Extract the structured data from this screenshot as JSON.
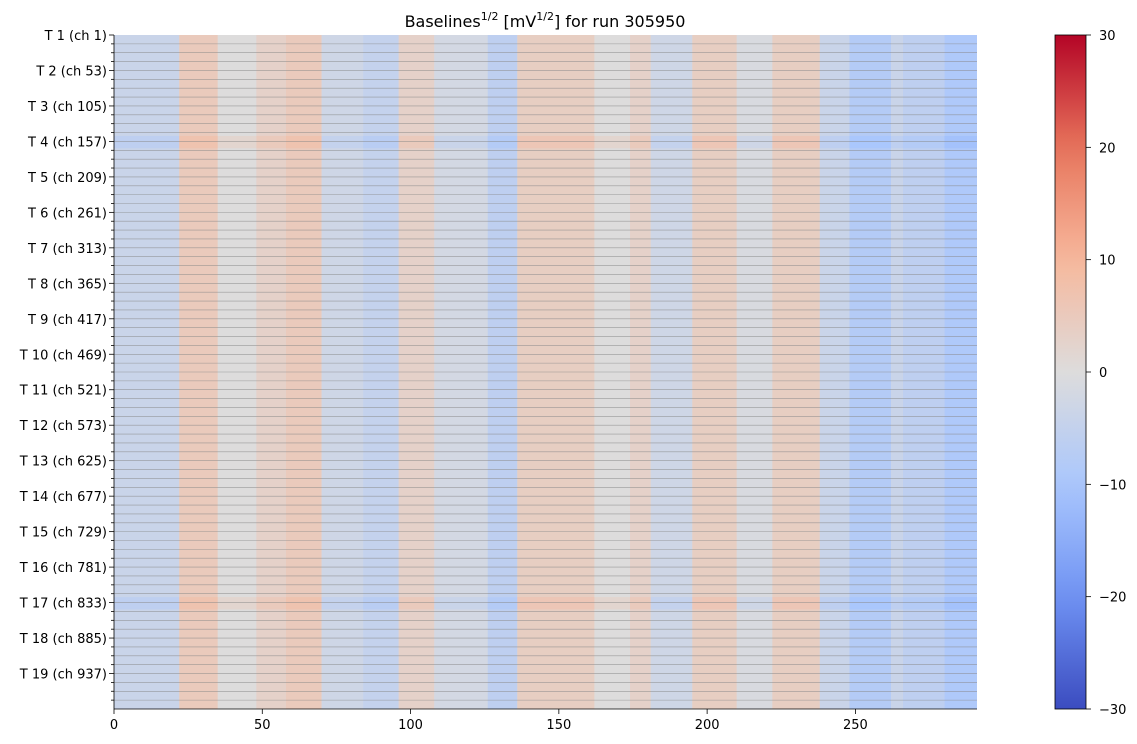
{
  "chart_data": {
    "type": "heatmap",
    "title": {
      "prefix": "Baselines",
      "prefix_sup": "1/2",
      "middle": " [mV",
      "middle_sup": "1/2",
      "suffix": "] for run 305950"
    },
    "xlabel": "",
    "ylabel": "",
    "xlim": [
      0,
      291
    ],
    "x_ticks": [
      0,
      50,
      100,
      150,
      200,
      250
    ],
    "n_rows": 988,
    "row_labels": [
      "T 1 (ch 1)",
      "T 2 (ch 53)",
      "T 3 (ch 105)",
      "T 4 (ch 157)",
      "T 5 (ch 209)",
      "T 6 (ch 261)",
      "T 7 (ch 313)",
      "T 8 (ch 365)",
      "T 9 (ch 417)",
      "T 10 (ch 469)",
      "T 11 (ch 521)",
      "T 12 (ch 573)",
      "T 13 (ch 625)",
      "T 14 (ch 677)",
      "T 15 (ch 729)",
      "T 16 (ch 781)",
      "T 17 (ch 833)",
      "T 18 (ch 885)",
      "T 19 (ch 937)"
    ],
    "channels_per_label": 52,
    "colorbar": {
      "colormap": "coolwarm",
      "vmin": -30,
      "vmax": 30,
      "ticks": [
        -30,
        -20,
        -10,
        0,
        10,
        20,
        30
      ],
      "colors": [
        "#3b4cc0",
        "#6f92f3",
        "#aac7fd",
        "#dddcdc",
        "#f7b89c",
        "#e7745b",
        "#b40426"
      ]
    },
    "column_bands": [
      {
        "x0": 0,
        "x1": 22,
        "value": -4
      },
      {
        "x0": 22,
        "x1": 35,
        "value": 5
      },
      {
        "x0": 35,
        "x1": 48,
        "value": 0
      },
      {
        "x0": 48,
        "x1": 58,
        "value": 3
      },
      {
        "x0": 58,
        "x1": 70,
        "value": 5
      },
      {
        "x0": 70,
        "x1": 84,
        "value": -3
      },
      {
        "x0": 84,
        "x1": 96,
        "value": -5
      },
      {
        "x0": 96,
        "x1": 108,
        "value": 3
      },
      {
        "x0": 108,
        "x1": 126,
        "value": -2
      },
      {
        "x0": 126,
        "x1": 136,
        "value": -6
      },
      {
        "x0": 136,
        "x1": 162,
        "value": 4
      },
      {
        "x0": 162,
        "x1": 174,
        "value": 0
      },
      {
        "x0": 174,
        "x1": 181,
        "value": 3
      },
      {
        "x0": 181,
        "x1": 195,
        "value": -3
      },
      {
        "x0": 195,
        "x1": 210,
        "value": 4
      },
      {
        "x0": 210,
        "x1": 222,
        "value": -1
      },
      {
        "x0": 222,
        "x1": 238,
        "value": 4
      },
      {
        "x0": 238,
        "x1": 248,
        "value": -4
      },
      {
        "x0": 248,
        "x1": 262,
        "value": -8
      },
      {
        "x0": 262,
        "x1": 266,
        "value": -4
      },
      {
        "x0": 266,
        "x1": 280,
        "value": -6
      },
      {
        "x0": 280,
        "x1": 291,
        "value": -9
      }
    ],
    "highlight_rows": [
      {
        "label": "T 4 (ch 157)",
        "x0": 0,
        "x1": 291,
        "offset": 2
      },
      {
        "label": "T 17 (ch 833)",
        "x0": 0,
        "x1": 291,
        "offset": 2
      }
    ],
    "grid": true
  }
}
